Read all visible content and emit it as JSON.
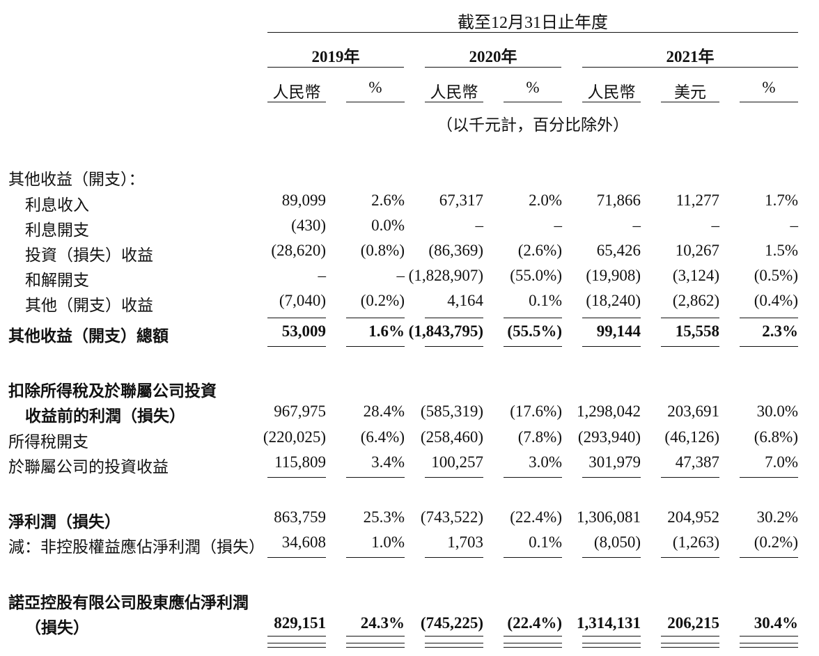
{
  "header": {
    "period": "截至12月31日止年度",
    "years": [
      "2019年",
      "2020年",
      "2021年"
    ],
    "units": [
      "人民幣",
      "%",
      "人民幣",
      "%",
      "人民幣",
      "美元",
      "%"
    ],
    "note": "（以千元計，百分比除外）"
  },
  "rows": [
    {
      "label": "其他收益（開支）：",
      "values": []
    },
    {
      "label": "利息收入",
      "values": [
        "89,099",
        "2.6%",
        "67,317",
        "2.0%",
        "71,866",
        "11,277",
        "1.7%"
      ]
    },
    {
      "label": "利息開支",
      "values": [
        "(430)",
        "0.0%",
        "–",
        "–",
        "–",
        "–",
        "–"
      ]
    },
    {
      "label": "投資（損失）收益",
      "values": [
        "(28,620)",
        "(0.8%)",
        "(86,369)",
        "(2.6%)",
        "65,426",
        "10,267",
        "1.5%"
      ]
    },
    {
      "label": "和解開支",
      "values": [
        "–",
        "–",
        "(1,828,907)",
        "(55.0%)",
        "(19,908)",
        "(3,124)",
        "(0.5%)"
      ]
    },
    {
      "label": "其他（開支）收益",
      "values": [
        "(7,040)",
        "(0.2%)",
        "4,164",
        "0.1%",
        "(18,240)",
        "(2,862)",
        "(0.4%)"
      ]
    },
    {
      "label": "其他收益（開支）總額",
      "values": [
        "53,009",
        "1.6%",
        "(1,843,795)",
        "(55.5%)",
        "99,144",
        "15,558",
        "2.3%"
      ]
    },
    {
      "label": "扣除所得稅及於聯屬公司投資",
      "values": []
    },
    {
      "label": "收益前的利潤（損失）",
      "values": [
        "967,975",
        "28.4%",
        "(585,319)",
        "(17.6%)",
        "1,298,042",
        "203,691",
        "30.0%"
      ]
    },
    {
      "label": "所得稅開支",
      "values": [
        "(220,025)",
        "(6.4%)",
        "(258,460)",
        "(7.8%)",
        "(293,940)",
        "(46,126)",
        "(6.8%)"
      ]
    },
    {
      "label": "於聯屬公司的投資收益",
      "values": [
        "115,809",
        "3.4%",
        "100,257",
        "3.0%",
        "301,979",
        "47,387",
        "7.0%"
      ]
    },
    {
      "label": "淨利潤（損失）",
      "values": [
        "863,759",
        "25.3%",
        "(743,522)",
        "(22.4%)",
        "1,306,081",
        "204,952",
        "30.2%"
      ]
    },
    {
      "label": "減：非控股權益應佔淨利潤（損失）",
      "values": [
        "34,608",
        "1.0%",
        "1,703",
        "0.1%",
        "(8,050)",
        "(1,263)",
        "(0.2%)"
      ]
    },
    {
      "label": "諾亞控股有限公司股東應佔淨利潤",
      "values": []
    },
    {
      "label": "（損失）",
      "values": [
        "829,151",
        "24.3%",
        "(745,225)",
        "(22.4%)",
        "1,314,131",
        "206,215",
        "30.4%"
      ]
    }
  ]
}
